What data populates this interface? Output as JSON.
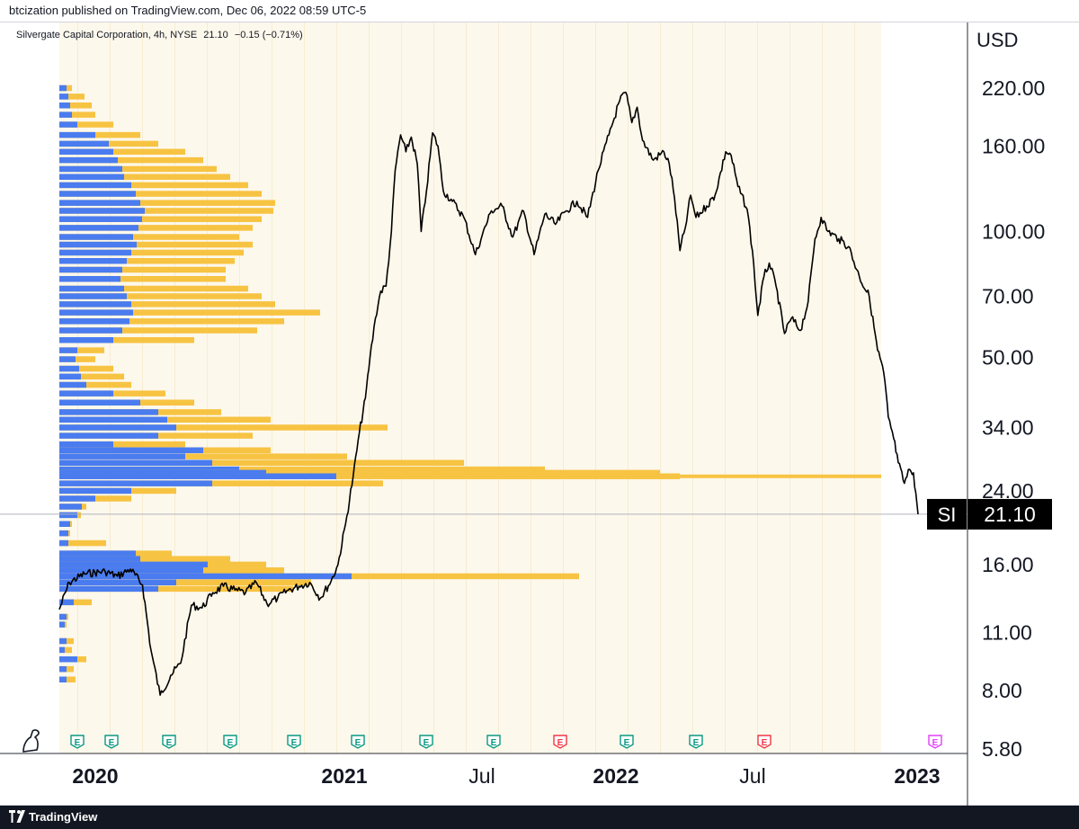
{
  "header": {
    "published": "btcization published on TradingView.com, Dec 06, 2022 08:59 UTC-5",
    "symbol_name": "Silvergate Capital Corporation, 4h, NYSE",
    "last_price": "21.10",
    "change": "−0.15 (−0.71%)"
  },
  "footer": {
    "brand": "TradingView"
  },
  "colors": {
    "buy_volume": "#f7c342",
    "sell_volume": "#4a7cf0",
    "price_line": "#000000",
    "session_bg": "#fdf8ec",
    "earnings_green": "#089981",
    "earnings_red": "#f23645",
    "earnings_purple": "#e040fb"
  },
  "chart_data": {
    "type": "line",
    "ylabel": "USD",
    "scale": "log",
    "y_ticks": [
      "220.00",
      "160.00",
      "100.00",
      "70.00",
      "50.00",
      "34.00",
      "24.00",
      "16.00",
      "11.00",
      "8.00",
      "5.80"
    ],
    "y_tick_values": [
      220,
      160,
      100,
      70,
      50,
      34,
      24,
      16,
      11,
      8,
      5.8
    ],
    "ylim": [
      5.8,
      320
    ],
    "x_ticks": [
      {
        "label": "2020",
        "bold": true,
        "date": "2020-01"
      },
      {
        "label": "2021",
        "bold": true,
        "date": "2021-01"
      },
      {
        "label": "Jul",
        "bold": false,
        "date": "2021-07"
      },
      {
        "label": "2022",
        "bold": true,
        "date": "2022-01"
      },
      {
        "label": "Jul",
        "bold": false,
        "date": "2022-07"
      },
      {
        "label": "2023",
        "bold": true,
        "date": "2023-01"
      }
    ],
    "xlim": [
      "2019-11-07",
      "2023-01-15"
    ],
    "current_price": {
      "symbol": "SI",
      "value": "21.10",
      "price": 21.1
    },
    "series": [
      {
        "name": "SI",
        "points": [
          [
            "2019-11-07",
            12.5
          ],
          [
            "2019-11-20",
            14.5
          ],
          [
            "2019-12-10",
            15.2
          ],
          [
            "2020-01-06",
            15.4
          ],
          [
            "2020-01-22",
            15.0
          ],
          [
            "2020-02-08",
            15.6
          ],
          [
            "2020-02-24",
            14.3
          ],
          [
            "2020-03-06",
            10.0
          ],
          [
            "2020-03-18",
            7.8
          ],
          [
            "2020-04-01",
            8.7
          ],
          [
            "2020-04-14",
            9.3
          ],
          [
            "2020-04-28",
            12.8
          ],
          [
            "2020-05-12",
            12.6
          ],
          [
            "2020-05-26",
            13.7
          ],
          [
            "2020-06-09",
            14.2
          ],
          [
            "2020-06-24",
            13.9
          ],
          [
            "2020-07-08",
            13.7
          ],
          [
            "2020-07-22",
            14.5
          ],
          [
            "2020-08-05",
            12.9
          ],
          [
            "2020-08-19",
            13.3
          ],
          [
            "2020-09-02",
            13.9
          ],
          [
            "2020-09-16",
            14.2
          ],
          [
            "2020-09-30",
            14.5
          ],
          [
            "2020-10-14",
            13.3
          ],
          [
            "2020-10-28",
            14.6
          ],
          [
            "2020-11-06",
            16.0
          ],
          [
            "2020-11-16",
            20.0
          ],
          [
            "2020-11-26",
            26.0
          ],
          [
            "2020-12-04",
            33.0
          ],
          [
            "2020-12-12",
            40.0
          ],
          [
            "2020-12-18",
            50.0
          ],
          [
            "2020-12-25",
            62.0
          ],
          [
            "2021-01-01",
            72.0
          ],
          [
            "2021-01-08",
            74.0
          ],
          [
            "2021-01-15",
            100.0
          ],
          [
            "2021-01-20",
            140.0
          ],
          [
            "2021-01-27",
            170.0
          ],
          [
            "2021-02-03",
            155.0
          ],
          [
            "2021-02-10",
            168.0
          ],
          [
            "2021-02-18",
            145.0
          ],
          [
            "2021-02-23",
            100.0
          ],
          [
            "2021-03-02",
            125.0
          ],
          [
            "2021-03-10",
            172.0
          ],
          [
            "2021-03-17",
            160.0
          ],
          [
            "2021-03-24",
            125.0
          ],
          [
            "2021-04-05",
            118.0
          ],
          [
            "2021-04-20",
            108.0
          ],
          [
            "2021-05-05",
            88.0
          ],
          [
            "2021-05-14",
            98.0
          ],
          [
            "2021-05-26",
            112.0
          ],
          [
            "2021-06-09",
            115.0
          ],
          [
            "2021-06-23",
            97.0
          ],
          [
            "2021-07-07",
            112.0
          ],
          [
            "2021-07-21",
            88.0
          ],
          [
            "2021-08-04",
            110.0
          ],
          [
            "2021-08-18",
            104.0
          ],
          [
            "2021-09-01",
            112.0
          ],
          [
            "2021-09-15",
            118.0
          ],
          [
            "2021-09-29",
            108.0
          ],
          [
            "2021-10-13",
            140.0
          ],
          [
            "2021-10-27",
            170.0
          ],
          [
            "2021-11-10",
            205.0
          ],
          [
            "2021-11-18",
            215.0
          ],
          [
            "2021-11-26",
            182.0
          ],
          [
            "2021-12-03",
            198.0
          ],
          [
            "2021-12-10",
            165.0
          ],
          [
            "2021-12-24",
            148.0
          ],
          [
            "2022-01-07",
            155.0
          ],
          [
            "2022-01-14",
            145.0
          ],
          [
            "2022-01-21",
            120.0
          ],
          [
            "2022-01-28",
            90.0
          ],
          [
            "2022-02-04",
            102.0
          ],
          [
            "2022-02-11",
            122.0
          ],
          [
            "2022-02-18",
            108.0
          ],
          [
            "2022-03-04",
            115.0
          ],
          [
            "2022-03-15",
            122.0
          ],
          [
            "2022-03-29",
            155.0
          ],
          [
            "2022-04-05",
            152.0
          ],
          [
            "2022-04-14",
            128.0
          ],
          [
            "2022-04-26",
            113.0
          ],
          [
            "2022-05-03",
            90.0
          ],
          [
            "2022-05-10",
            63.0
          ],
          [
            "2022-05-18",
            78.0
          ],
          [
            "2022-05-25",
            84.0
          ],
          [
            "2022-06-03",
            74.0
          ],
          [
            "2022-06-14",
            57.0
          ],
          [
            "2022-06-23",
            62.0
          ],
          [
            "2022-07-05",
            58.0
          ],
          [
            "2022-07-15",
            68.0
          ],
          [
            "2022-07-24",
            96.0
          ],
          [
            "2022-08-01",
            108.0
          ],
          [
            "2022-08-10",
            100.0
          ],
          [
            "2022-08-24",
            96.0
          ],
          [
            "2022-09-06",
            92.0
          ],
          [
            "2022-09-20",
            78.0
          ],
          [
            "2022-10-03",
            70.0
          ],
          [
            "2022-10-14",
            52.0
          ],
          [
            "2022-10-22",
            46.0
          ],
          [
            "2022-10-28",
            36.0
          ],
          [
            "2022-11-04",
            32.0
          ],
          [
            "2022-11-10",
            28.0
          ],
          [
            "2022-11-18",
            25.0
          ],
          [
            "2022-11-25",
            27.0
          ],
          [
            "2022-11-30",
            26.5
          ],
          [
            "2022-12-06",
            21.1
          ]
        ]
      }
    ],
    "volume_profile": [
      {
        "price": 220,
        "sell": 8,
        "total": 14
      },
      {
        "price": 210,
        "sell": 10,
        "total": 28
      },
      {
        "price": 200,
        "sell": 12,
        "total": 36
      },
      {
        "price": 190,
        "sell": 14,
        "total": 40
      },
      {
        "price": 180,
        "sell": 20,
        "total": 60
      },
      {
        "price": 170,
        "sell": 40,
        "total": 90
      },
      {
        "price": 162,
        "sell": 55,
        "total": 110
      },
      {
        "price": 155,
        "sell": 60,
        "total": 140
      },
      {
        "price": 148,
        "sell": 65,
        "total": 160
      },
      {
        "price": 141,
        "sell": 70,
        "total": 175
      },
      {
        "price": 135,
        "sell": 72,
        "total": 190
      },
      {
        "price": 129,
        "sell": 80,
        "total": 210
      },
      {
        "price": 123,
        "sell": 85,
        "total": 225
      },
      {
        "price": 117,
        "sell": 90,
        "total": 240
      },
      {
        "price": 112,
        "sell": 95,
        "total": 238
      },
      {
        "price": 107,
        "sell": 92,
        "total": 225
      },
      {
        "price": 102,
        "sell": 88,
        "total": 215
      },
      {
        "price": 97,
        "sell": 82,
        "total": 200
      },
      {
        "price": 93,
        "sell": 86,
        "total": 215
      },
      {
        "price": 89,
        "sell": 80,
        "total": 205
      },
      {
        "price": 85,
        "sell": 75,
        "total": 195
      },
      {
        "price": 81,
        "sell": 70,
        "total": 185
      },
      {
        "price": 77,
        "sell": 68,
        "total": 185
      },
      {
        "price": 73,
        "sell": 72,
        "total": 210
      },
      {
        "price": 70,
        "sell": 75,
        "total": 225
      },
      {
        "price": 67,
        "sell": 80,
        "total": 240
      },
      {
        "price": 64,
        "sell": 82,
        "total": 290
      },
      {
        "price": 61,
        "sell": 78,
        "total": 250
      },
      {
        "price": 58,
        "sell": 70,
        "total": 220
      },
      {
        "price": 55,
        "sell": 60,
        "total": 150
      },
      {
        "price": 52,
        "sell": 20,
        "total": 50
      },
      {
        "price": 49.5,
        "sell": 18,
        "total": 40
      },
      {
        "price": 47,
        "sell": 22,
        "total": 60
      },
      {
        "price": 45,
        "sell": 24,
        "total": 72
      },
      {
        "price": 43,
        "sell": 30,
        "total": 80
      },
      {
        "price": 41,
        "sell": 60,
        "total": 118
      },
      {
        "price": 39,
        "sell": 90,
        "total": 150
      },
      {
        "price": 37,
        "sell": 110,
        "total": 180
      },
      {
        "price": 35.5,
        "sell": 120,
        "total": 235
      },
      {
        "price": 34,
        "sell": 130,
        "total": 365
      },
      {
        "price": 32.5,
        "sell": 110,
        "total": 215
      },
      {
        "price": 31,
        "sell": 60,
        "total": 140
      },
      {
        "price": 30,
        "sell": 160,
        "total": 235
      },
      {
        "price": 29,
        "sell": 140,
        "total": 320
      },
      {
        "price": 28,
        "sell": 170,
        "total": 450
      },
      {
        "price": 27,
        "sell": 200,
        "total": 540
      },
      {
        "price": 26.5,
        "sell": 230,
        "total": 668
      },
      {
        "price": 26,
        "sell": 308,
        "total": 690
      },
      {
        "price": 25,
        "sell": 170,
        "total": 360
      },
      {
        "price": 24,
        "sell": 80,
        "total": 130
      },
      {
        "price": 23,
        "sell": 40,
        "total": 80
      },
      {
        "price": 22,
        "sell": 25,
        "total": 30
      },
      {
        "price": 21,
        "sell": 20,
        "total": 24
      },
      {
        "price": 20,
        "sell": 12,
        "total": 14
      },
      {
        "price": 19,
        "sell": 10,
        "total": 12
      },
      {
        "price": 18,
        "sell": 10,
        "total": 52
      },
      {
        "price": 17,
        "sell": 85,
        "total": 125
      },
      {
        "price": 16.5,
        "sell": 90,
        "total": 190
      },
      {
        "price": 16,
        "sell": 165,
        "total": 230
      },
      {
        "price": 15.5,
        "sell": 160,
        "total": 250
      },
      {
        "price": 15,
        "sell": 325,
        "total": 578
      },
      {
        "price": 14.5,
        "sell": 130,
        "total": 280
      },
      {
        "price": 14,
        "sell": 110,
        "total": 260
      },
      {
        "price": 13,
        "sell": 16,
        "total": 36
      },
      {
        "price": 12,
        "sell": 8,
        "total": 10
      },
      {
        "price": 11.5,
        "sell": 6,
        "total": 8
      },
      {
        "price": 10.5,
        "sell": 8,
        "total": 16
      },
      {
        "price": 10,
        "sell": 6,
        "total": 14
      },
      {
        "price": 9.5,
        "sell": 20,
        "total": 30
      },
      {
        "price": 9,
        "sell": 8,
        "total": 16
      },
      {
        "price": 8.5,
        "sell": 8,
        "total": 18
      }
    ],
    "earnings_markers": [
      {
        "date": "2020-01-22",
        "label": "E",
        "color": "green"
      },
      {
        "date": "2020-04-22",
        "label": "E",
        "color": "green"
      },
      {
        "date": "2020-07-22",
        "label": "E",
        "color": "green"
      },
      {
        "date": "2020-10-21",
        "label": "E",
        "color": "green"
      },
      {
        "date": "2021-01-20",
        "label": "E",
        "color": "green"
      },
      {
        "date": "2021-04-21",
        "label": "E",
        "color": "green"
      },
      {
        "date": "2021-07-21",
        "label": "E",
        "color": "green"
      },
      {
        "date": "2021-10-20",
        "label": "E",
        "color": "green"
      },
      {
        "date": "2022-01-19",
        "label": "E",
        "color": "red"
      },
      {
        "date": "2022-04-20",
        "label": "E",
        "color": "green"
      },
      {
        "date": "2022-07-20",
        "label": "E",
        "color": "green"
      },
      {
        "date": "2022-10-19",
        "label": "E",
        "color": "red"
      },
      {
        "date": "2023-01-12",
        "label": "E",
        "color": "purple"
      }
    ]
  }
}
